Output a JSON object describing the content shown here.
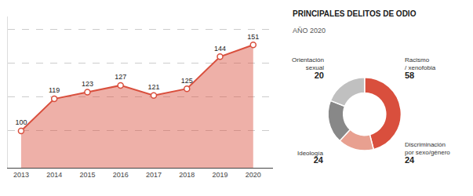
{
  "chart_data": [
    {
      "type": "area",
      "x": [
        2013,
        2014,
        2015,
        2016,
        2017,
        2018,
        2019,
        2020
      ],
      "values": [
        100,
        119,
        123,
        127,
        121,
        125,
        144,
        151
      ],
      "color": "#d94f3d",
      "marker": "circle",
      "xlim": [
        2012.6,
        2020.6
      ],
      "xticks": [
        2013,
        2014,
        2015,
        2016,
        2017,
        2018,
        2019,
        2020
      ],
      "ylim": [
        78,
        168
      ],
      "yticks": [
        100,
        120,
        140,
        160
      ],
      "grid": true,
      "data_labels": true,
      "tick_labels": "x"
    },
    {
      "type": "donut",
      "title": "PRINCIPALES DELITOS DE ODIO",
      "subtitle": "AÑO 2020",
      "categories": [
        "Racismo\n/ xenofobia",
        "Orientación\nsexual",
        "Ideología",
        "Discriminación\npor sexo/género"
      ],
      "values": [
        58,
        20,
        24,
        24
      ],
      "colors": [
        "#d94f3d",
        "#e8a090",
        "#888888",
        "#c0c0c0"
      ],
      "data_labels": true
    }
  ]
}
